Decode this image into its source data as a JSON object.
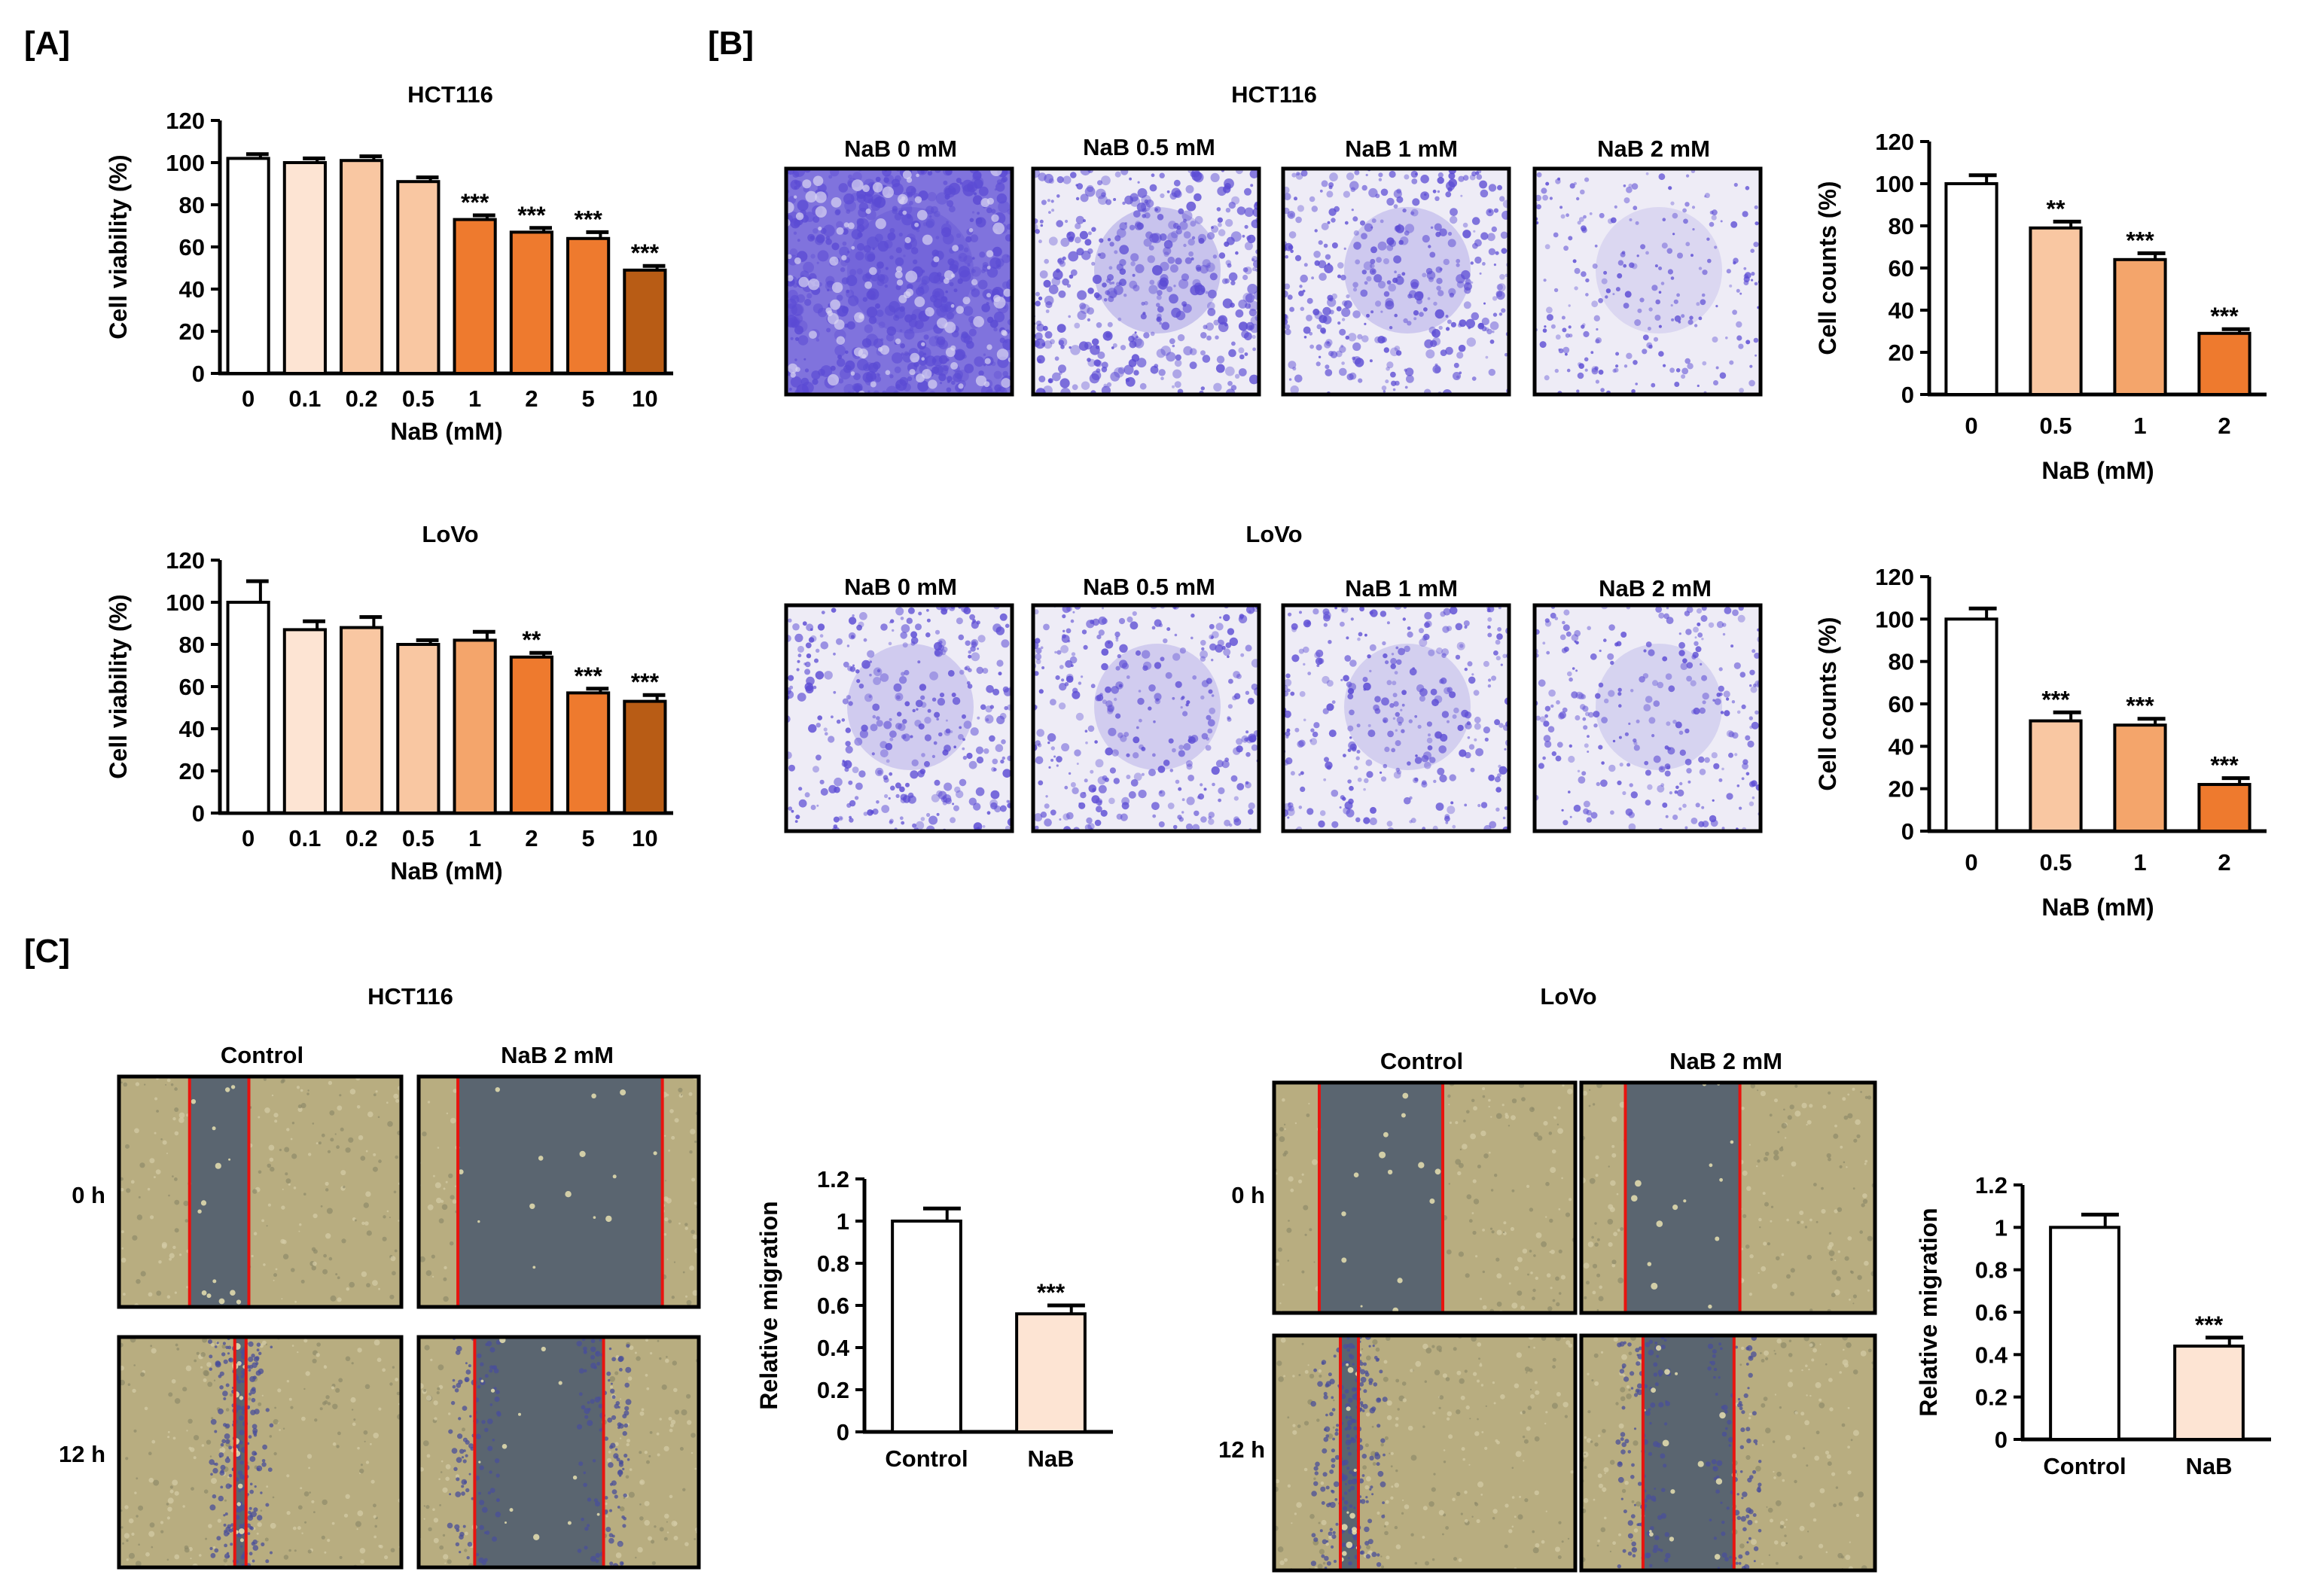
{
  "panels": {
    "a": "[A]",
    "b": "[B]",
    "c": "[C]"
  },
  "colors": {
    "white": "#ffffff",
    "peach_light": "#fde4d3",
    "peach": "#f9c7a2",
    "orange_light": "#f4a56b",
    "orange": "#ee7a2e",
    "orange_dark": "#e8711f",
    "brown": "#b85c15",
    "crystal_violet": "#5b4bd4",
    "scratch_line": "#e8140f",
    "brightfield": "#b8ad80",
    "wound_gap": "#5a6570"
  },
  "chart_data": [
    {
      "id": "a_hct116",
      "type": "bar",
      "title": "HCT116",
      "categories": [
        "0",
        "0.1",
        "0.2",
        "0.5",
        "1",
        "2",
        "5",
        "10"
      ],
      "values": [
        102,
        100,
        101,
        91,
        73,
        67,
        64,
        49
      ],
      "errors": [
        2,
        2,
        2,
        2,
        2,
        2,
        3,
        2
      ],
      "significance": [
        "",
        "",
        "",
        "",
        "***",
        "***",
        "***",
        "***"
      ],
      "bar_colors": [
        "#ffffff",
        "#fde4d3",
        "#f9c7a2",
        "#f9c7a2",
        "#ee7a2e",
        "#ee7a2e",
        "#ee7a2e",
        "#b85c15"
      ],
      "xlabel": "NaB (mM)",
      "ylabel": "Cell viability (%)",
      "ylim": [
        0,
        120
      ],
      "yticks": [
        "0",
        "20",
        "40",
        "60",
        "80",
        "100",
        "120"
      ]
    },
    {
      "id": "a_lovo",
      "type": "bar",
      "title": "LoVo",
      "categories": [
        "0",
        "0.1",
        "0.2",
        "0.5",
        "1",
        "2",
        "5",
        "10"
      ],
      "values": [
        100,
        87,
        88,
        80,
        82,
        74,
        57,
        53
      ],
      "errors": [
        10,
        4,
        5,
        2,
        4,
        2,
        2,
        3
      ],
      "significance": [
        "",
        "",
        "",
        "",
        "",
        "**",
        "***",
        "***"
      ],
      "bar_colors": [
        "#ffffff",
        "#fde4d3",
        "#f9c7a2",
        "#f9c7a2",
        "#f4a56b",
        "#ee7a2e",
        "#ee7a2e",
        "#b85c15"
      ],
      "xlabel": "NaB (mM)",
      "ylabel": "Cell viability (%)",
      "ylim": [
        0,
        120
      ],
      "yticks": [
        "0",
        "20",
        "40",
        "60",
        "80",
        "100",
        "120"
      ]
    },
    {
      "id": "b_hct116",
      "type": "bar",
      "title": "",
      "categories": [
        "0",
        "0.5",
        "1",
        "2"
      ],
      "values": [
        100,
        79,
        64,
        29
      ],
      "errors": [
        4,
        3,
        3,
        2
      ],
      "significance": [
        "",
        "**",
        "***",
        "***"
      ],
      "bar_colors": [
        "#ffffff",
        "#f9c7a2",
        "#f4a56b",
        "#ee7a2e"
      ],
      "xlabel": "NaB (mM)",
      "ylabel": "Cell counts (%)",
      "ylim": [
        0,
        120
      ],
      "yticks": [
        "0",
        "20",
        "40",
        "60",
        "80",
        "100",
        "120"
      ]
    },
    {
      "id": "b_lovo",
      "type": "bar",
      "title": "",
      "categories": [
        "0",
        "0.5",
        "1",
        "2"
      ],
      "values": [
        100,
        52,
        50,
        22
      ],
      "errors": [
        5,
        4,
        3,
        3
      ],
      "significance": [
        "",
        "***",
        "***",
        "***"
      ],
      "bar_colors": [
        "#ffffff",
        "#f9c7a2",
        "#f4a56b",
        "#ee7a2e"
      ],
      "xlabel": "NaB (mM)",
      "ylabel": "Cell counts (%)",
      "ylim": [
        0,
        120
      ],
      "yticks": [
        "0",
        "20",
        "40",
        "60",
        "80",
        "100",
        "120"
      ]
    },
    {
      "id": "c_hct116",
      "type": "bar",
      "title": "",
      "categories": [
        "Control",
        "NaB"
      ],
      "values": [
        1.0,
        0.56
      ],
      "errors": [
        0.06,
        0.04
      ],
      "significance": [
        "",
        "***"
      ],
      "bar_colors": [
        "#ffffff",
        "#fde4d3"
      ],
      "xlabel": "",
      "ylabel": "Relative migration",
      "ylim": [
        0,
        1.2
      ],
      "yticks": [
        "0",
        "0.2",
        "0.4",
        "0.6",
        "0.8",
        "1",
        "1.2"
      ]
    },
    {
      "id": "c_lovo",
      "type": "bar",
      "title": "",
      "categories": [
        "Control",
        "NaB"
      ],
      "values": [
        1.0,
        0.44
      ],
      "errors": [
        0.06,
        0.04
      ],
      "significance": [
        "",
        "***"
      ],
      "bar_colors": [
        "#ffffff",
        "#fde4d3"
      ],
      "xlabel": "",
      "ylabel": "Relative migration",
      "ylim": [
        0,
        1.2
      ],
      "yticks": [
        "0",
        "0.2",
        "0.4",
        "0.6",
        "0.8",
        "1",
        "1.2"
      ]
    }
  ],
  "panel_b": {
    "hct116_title": "HCT116",
    "lovo_title": "LoVo",
    "image_labels": [
      "NaB 0 mM",
      "NaB 0.5 mM",
      "NaB 1 mM",
      "NaB 2 mM"
    ],
    "stain_density_hct116": [
      0.95,
      0.7,
      0.55,
      0.2
    ],
    "stain_density_lovo": [
      0.5,
      0.45,
      0.4,
      0.3
    ]
  },
  "panel_c": {
    "hct116_title": "HCT116",
    "lovo_title": "LoVo",
    "column_labels": [
      "Control",
      "NaB 2 mM"
    ],
    "row_labels": [
      "0 h",
      "12 h"
    ]
  }
}
